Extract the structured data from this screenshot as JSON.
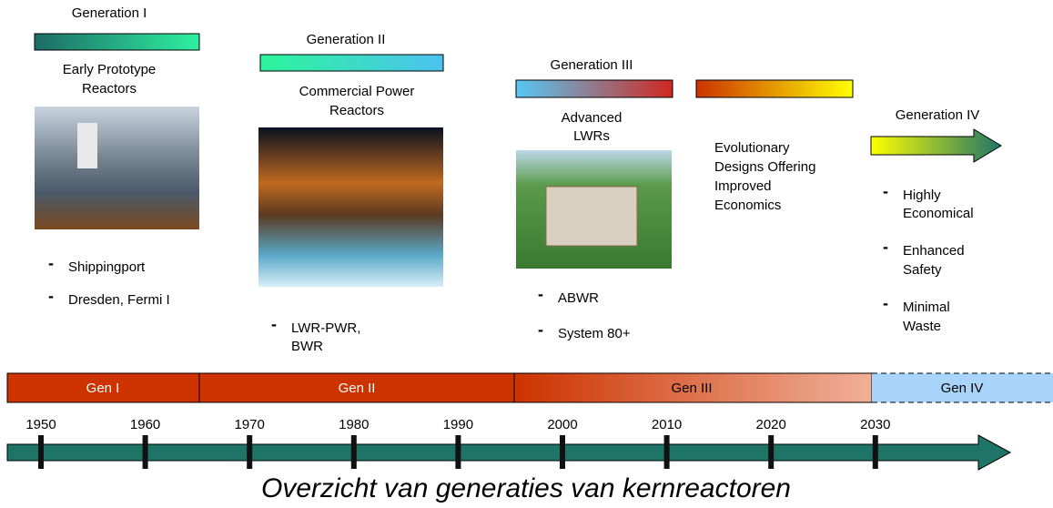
{
  "generations": [
    {
      "label": "Generation I",
      "title": [
        "Early Prototype",
        "Reactors"
      ],
      "items": [
        [
          "Shippingport"
        ],
        [
          "Dresden, Fermi I"
        ]
      ]
    },
    {
      "label": "Generation II",
      "title": [
        "Commercial Power",
        "Reactors"
      ],
      "items": [
        [
          "LWR-PWR,",
          "BWR"
        ]
      ]
    },
    {
      "label": "Generation III",
      "title": [
        "Advanced",
        "LWRs"
      ],
      "items": [
        [
          "ABWR"
        ],
        [
          "System 80+"
        ]
      ],
      "note": [
        "Evolutionary",
        "Designs Offering",
        "Improved",
        "Economics"
      ]
    },
    {
      "label": "Generation IV",
      "items": [
        [
          "Highly",
          "Economical"
        ],
        [
          "Enhanced",
          "Safety"
        ],
        [
          "Minimal",
          "Waste"
        ]
      ]
    }
  ],
  "timeline": {
    "bands": [
      "Gen I",
      "Gen II",
      "Gen III",
      "Gen IV"
    ],
    "years": [
      "1950",
      "1960",
      "1970",
      "1980",
      "1990",
      "2000",
      "2010",
      "2020",
      "2030"
    ]
  },
  "caption": "Overzicht van generaties van kernreactoren"
}
